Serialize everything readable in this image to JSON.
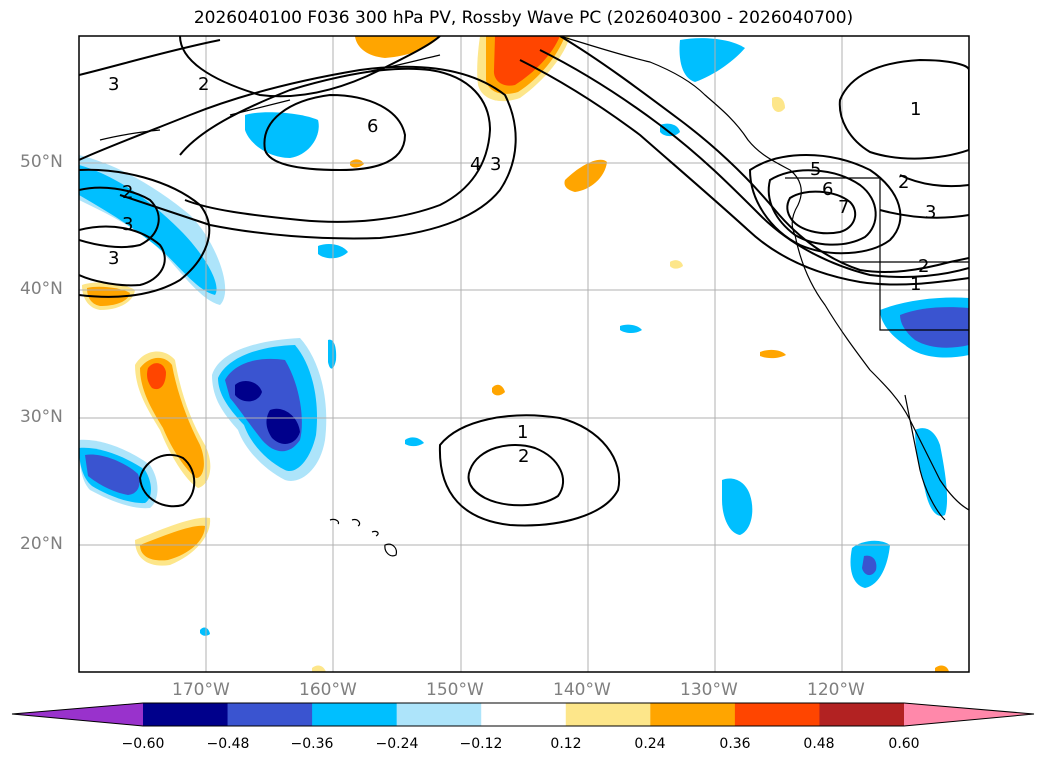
{
  "title": "2026040100 F036 300 hPa PV, Rossby Wave PC (2026040300 - 2026040700)",
  "map": {
    "projection": "lat-lon",
    "lon_range": [
      180,
      -110
    ],
    "lat_range": [
      10,
      60
    ],
    "lon_ticks": [
      "170°W",
      "160°W",
      "150°W",
      "140°W",
      "130°W",
      "120°W"
    ],
    "lat_ticks": [
      "50°N",
      "40°N",
      "30°N",
      "20°N"
    ],
    "gridlines": true
  },
  "contours": {
    "description": "black contour lines with inline labels",
    "labels": [
      "3",
      "2",
      "6",
      "4",
      "3",
      "2",
      "3",
      "3",
      "1",
      "2",
      "5",
      "6",
      "7",
      "1",
      "2",
      "3",
      "2",
      "1"
    ]
  },
  "colorbar": {
    "ticks": [
      "−0.60",
      "−0.48",
      "−0.36",
      "−0.24",
      "−0.12",
      "0.12",
      "0.24",
      "0.36",
      "0.48",
      "0.60"
    ],
    "colors": [
      "#9932cc",
      "#00008b",
      "#3a54d0",
      "#00bfff",
      "#ade4fa",
      "#ffffff",
      "#fde68a",
      "#ffa500",
      "#ff4500",
      "#b22222",
      "#ff88aa"
    ]
  }
}
